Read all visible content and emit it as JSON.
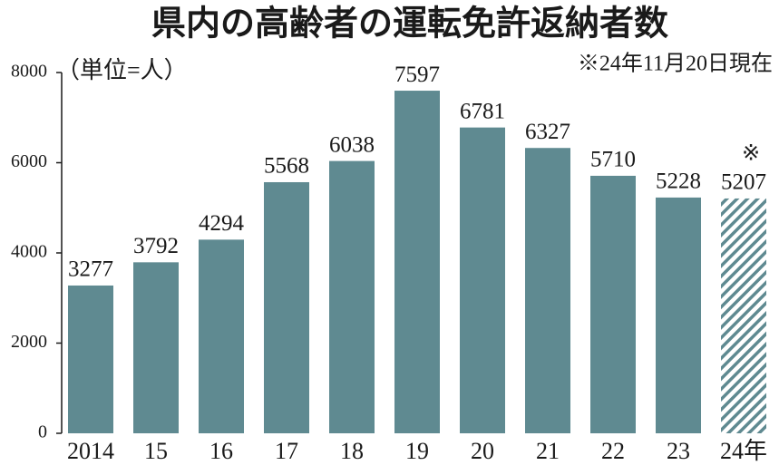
{
  "chart_data": {
    "type": "bar",
    "title": "県内の高齢者の運転免許返納者数",
    "subtitle": "（単位=人）",
    "note": "※24年11月20日現在",
    "categories": [
      "2014",
      "15",
      "16",
      "17",
      "18",
      "19",
      "20",
      "21",
      "22",
      "23",
      "24年"
    ],
    "values": [
      3277,
      3792,
      4294,
      5568,
      6038,
      7597,
      6781,
      6327,
      5710,
      5228,
      5207
    ],
    "hatched": [
      false,
      false,
      false,
      false,
      false,
      false,
      false,
      false,
      false,
      false,
      true
    ],
    "hatched_label": "※",
    "color": "#5f8a91",
    "ylim": [
      0,
      8000
    ],
    "yticks": [
      0,
      2000,
      4000,
      6000,
      8000
    ],
    "grid": false
  }
}
